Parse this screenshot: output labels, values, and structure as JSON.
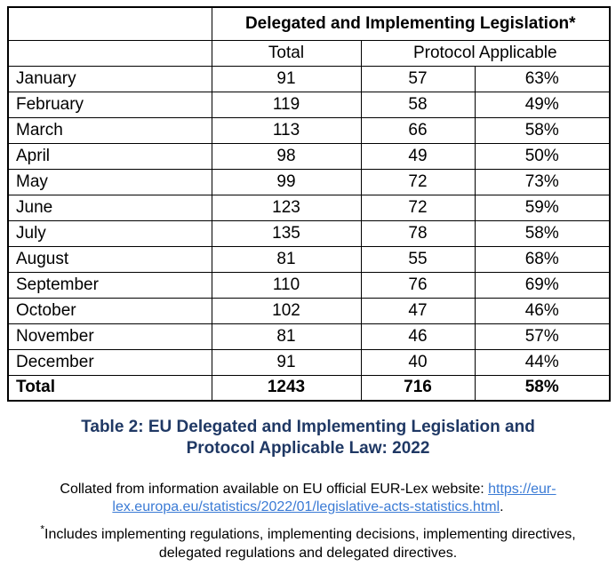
{
  "colors": {
    "caption_navy": "#1F3864",
    "link_blue": "#3B7BD5",
    "table_border": "#000000",
    "text": "#000000"
  },
  "table": {
    "header": "Delegated and Implementing Legislation*",
    "subheader_total": "Total",
    "subheader_protocol": "Protocol Applicable",
    "rows": [
      {
        "month": "January",
        "total": "91",
        "protocol": "57",
        "pct": "63%"
      },
      {
        "month": "February",
        "total": "119",
        "protocol": "58",
        "pct": "49%"
      },
      {
        "month": "March",
        "total": "113",
        "protocol": "66",
        "pct": "58%"
      },
      {
        "month": "April",
        "total": "98",
        "protocol": "49",
        "pct": "50%"
      },
      {
        "month": "May",
        "total": "99",
        "protocol": "72",
        "pct": "73%"
      },
      {
        "month": "June",
        "total": "123",
        "protocol": "72",
        "pct": "59%"
      },
      {
        "month": "July",
        "total": "135",
        "protocol": "78",
        "pct": "58%"
      },
      {
        "month": "August",
        "total": "81",
        "protocol": "55",
        "pct": "68%"
      },
      {
        "month": "September",
        "total": "110",
        "protocol": "76",
        "pct": "69%"
      },
      {
        "month": "October",
        "total": "102",
        "protocol": "47",
        "pct": "46%"
      },
      {
        "month": "November",
        "total": "81",
        "protocol": "46",
        "pct": "57%"
      },
      {
        "month": "December",
        "total": "91",
        "protocol": "40",
        "pct": "44%"
      }
    ],
    "total_row": {
      "label": "Total",
      "total": "1243",
      "protocol": "716",
      "pct": "58%"
    }
  },
  "caption": {
    "line1": "Table 2: EU Delegated and Implementing Legislation and",
    "line2": "Protocol Applicable Law: 2022"
  },
  "source": {
    "prefix": "Collated from information available on EU official EUR-Lex website: ",
    "link_text": "https://eur-lex.europa.eu/statistics/2022/01/legislative-acts-statistics.html",
    "suffix": "."
  },
  "footnote": {
    "marker": "*",
    "text": "Includes implementing regulations, implementing decisions, implementing directives, delegated regulations and delegated directives."
  }
}
